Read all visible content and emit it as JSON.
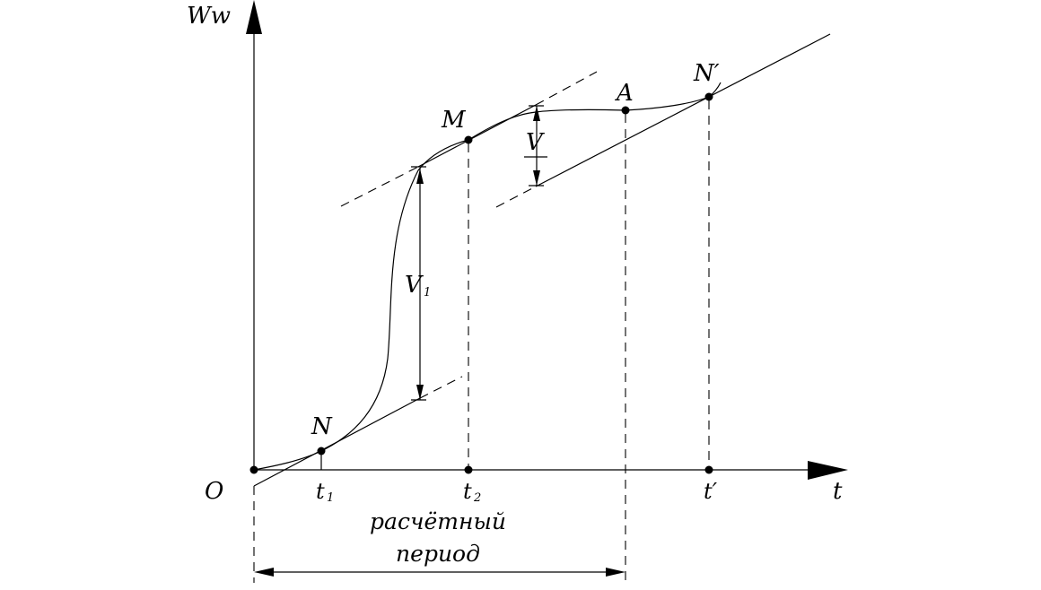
{
  "axes": {
    "y_label": "Ww",
    "x_label": "t",
    "origin_label": "O"
  },
  "points": {
    "N": "N",
    "M": "M",
    "A": "A",
    "N_prime": "N′"
  },
  "ticks": {
    "t1_main": "t",
    "t1_sub": "1",
    "t2_main": "t",
    "t2_sub": "2",
    "t_prime": "t′"
  },
  "dimensions": {
    "V1_main": "V",
    "V1_sub": "1",
    "V": "V"
  },
  "period_label": {
    "line1": "расчётный",
    "line2": "период"
  },
  "colors": {
    "ink": "#000000",
    "background": "#ffffff"
  }
}
